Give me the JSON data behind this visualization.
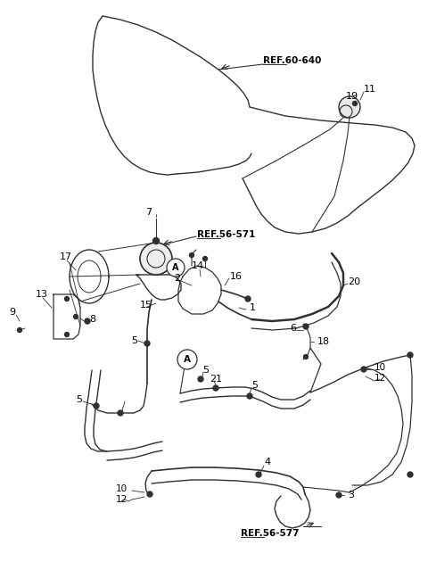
{
  "background_color": "#ffffff",
  "line_color": "#303030",
  "text_color": "#000000",
  "figsize": [
    4.8,
    6.39
  ],
  "dpi": 100,
  "xlim": [
    0,
    480
  ],
  "ylim": [
    0,
    639
  ]
}
